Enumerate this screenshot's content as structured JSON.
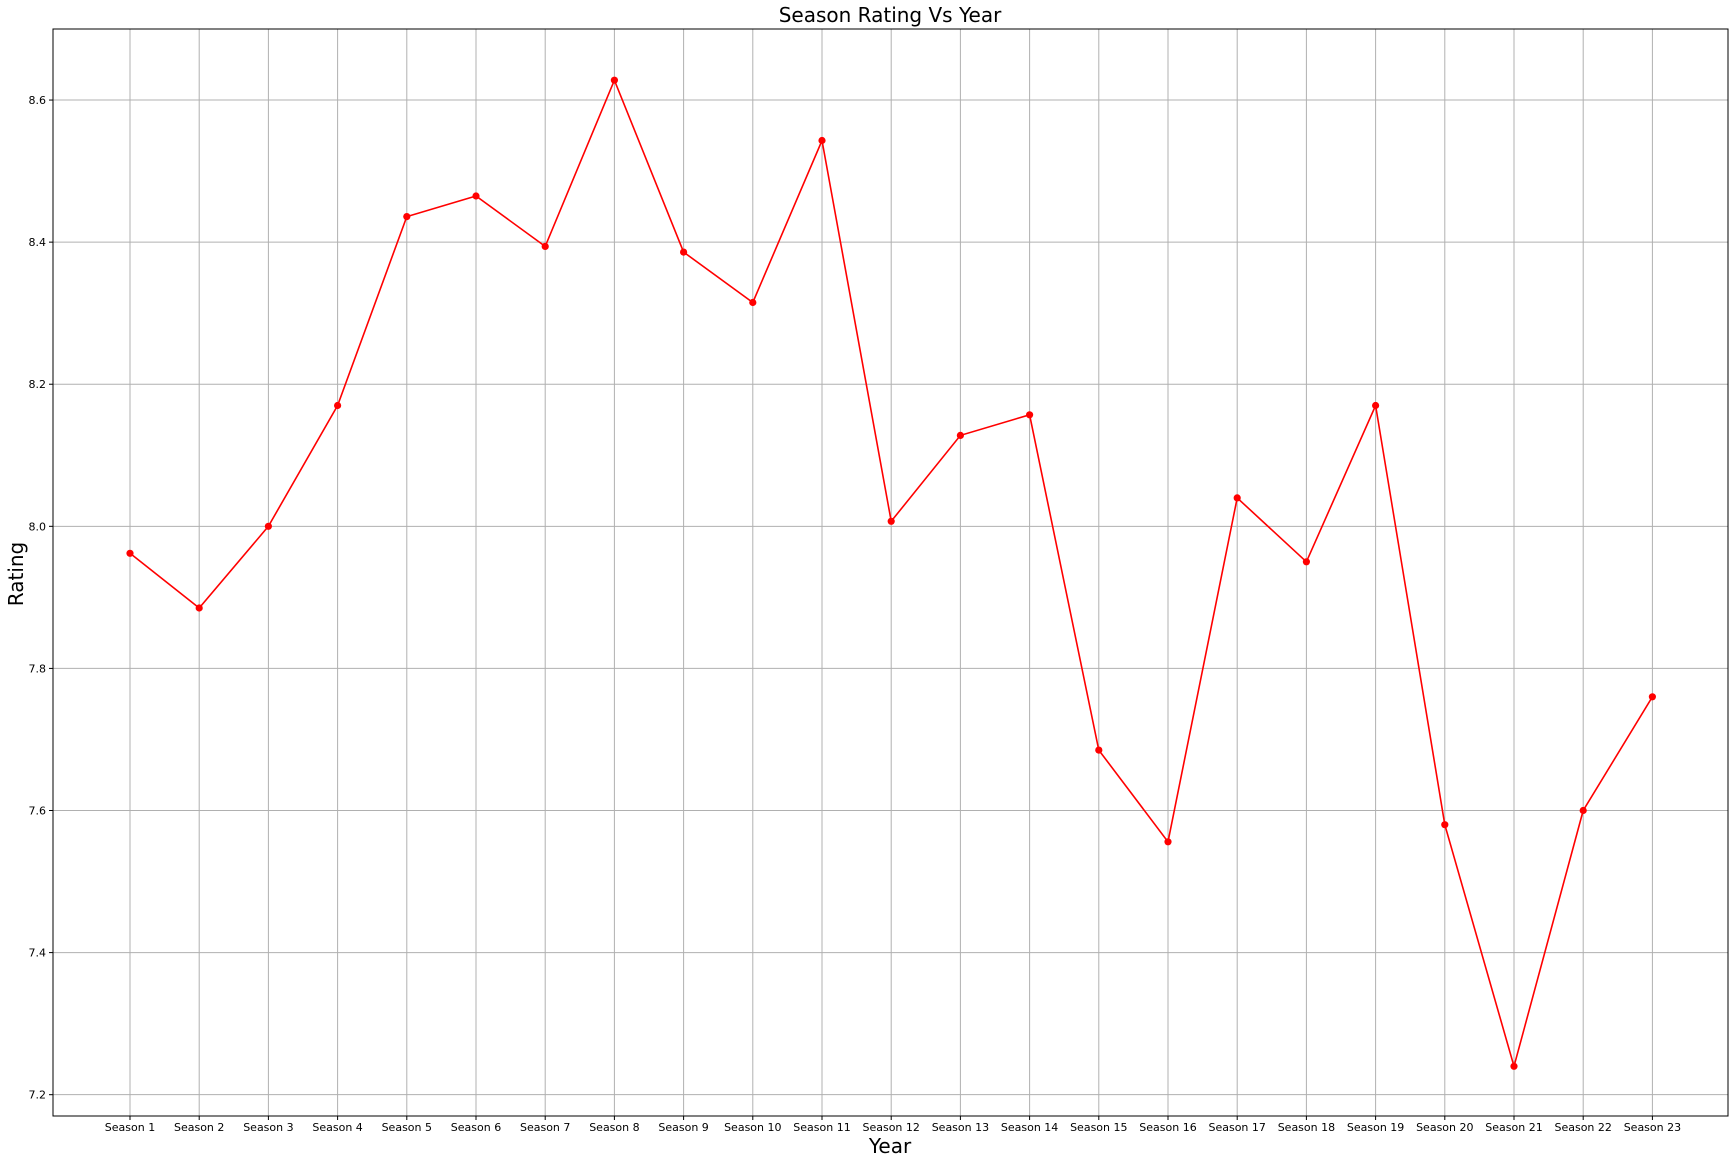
{
  "chart_data": {
    "type": "line",
    "title": "Season Rating Vs Year",
    "xlabel": "Year",
    "ylabel": "Rating",
    "categories": [
      "Season 1",
      "Season 2",
      "Season 3",
      "Season 4",
      "Season 5",
      "Season 6",
      "Season 7",
      "Season 8",
      "Season 9",
      "Season 10",
      "Season 11",
      "Season 12",
      "Season 13",
      "Season 14",
      "Season 15",
      "Season 16",
      "Season 17",
      "Season 18",
      "Season 19",
      "Season 20",
      "Season 21",
      "Season 22",
      "Season 23"
    ],
    "series": [
      {
        "color": "#ff0000",
        "marker": "circle",
        "values": [
          7.962,
          7.885,
          8.0,
          8.17,
          8.436,
          8.465,
          8.394,
          8.628,
          8.386,
          8.315,
          8.543,
          8.007,
          8.128,
          8.157,
          7.685,
          7.556,
          8.04,
          7.95,
          8.17,
          7.58,
          7.24,
          7.6,
          7.76
        ]
      }
    ],
    "ylim": [
      7.17,
      8.7
    ],
    "yticks": [
      "7.2",
      "7.4",
      "7.6",
      "7.8",
      "8.0",
      "8.2",
      "8.4",
      "8.6"
    ],
    "grid": true,
    "legend": "none"
  }
}
